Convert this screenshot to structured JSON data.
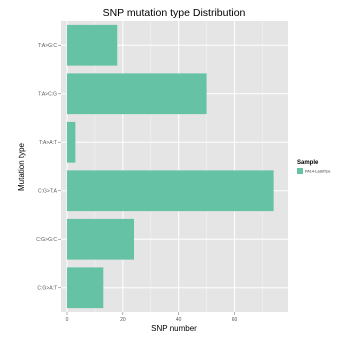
{
  "chart_data": {
    "type": "bar",
    "orientation": "horizontal",
    "title": "SNP mutation type Distribution",
    "xlabel": "SNP number",
    "ylabel": "Mutation type",
    "categories": [
      "T:A>G:C",
      "T:A>C:G",
      "T:A>A:T",
      "C:G>T:A",
      "C:G>G:C",
      "C:G>A:T"
    ],
    "series": [
      {
        "name": "PA14-LasBTpe",
        "values": [
          18,
          50,
          3,
          74,
          24,
          13
        ],
        "color": "#66c2a5"
      }
    ],
    "xlim": [
      0,
      77
    ],
    "xticks": [
      0,
      20,
      40,
      60
    ],
    "grid": true,
    "legend": {
      "title": "Sample",
      "position": "right"
    },
    "panel_color": "#e5e5e5"
  }
}
